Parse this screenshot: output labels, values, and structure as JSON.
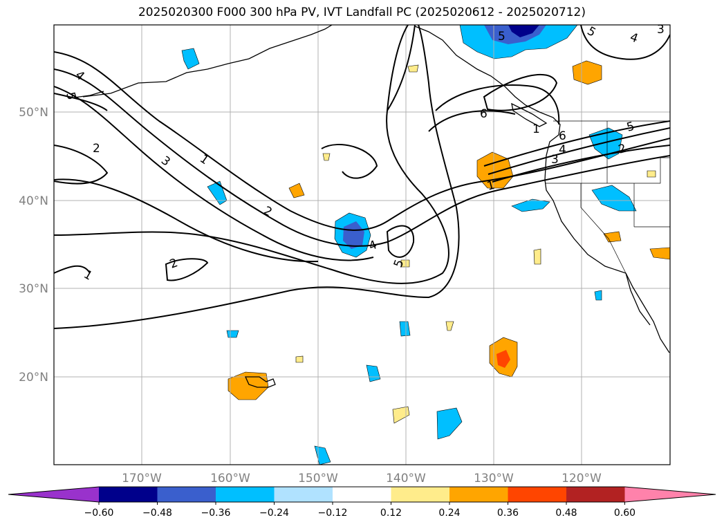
{
  "title": "2025020300 F000 300 hPa PV, IVT Landfall PC (2025020612 - 2025020712)",
  "lat_labels": [
    "50°N",
    "40°N",
    "30°N",
    "20°N"
  ],
  "lon_labels": [
    "170°W",
    "160°W",
    "150°W",
    "140°W",
    "130°W",
    "120°W"
  ],
  "colorbar": {
    "ticks": [
      "−0.60",
      "−0.48",
      "−0.36",
      "−0.24",
      "−0.12",
      "0.12",
      "0.24",
      "0.36",
      "0.48",
      "0.60"
    ],
    "colors": [
      "#9932cc",
      "#00008b",
      "#3a5fcd",
      "#00bfff",
      "#b0e2ff",
      "#ffffff",
      "#ffec8b",
      "#ffa500",
      "#ff4500",
      "#b22222",
      "#ff82ab"
    ]
  },
  "contour_labels": [
    "1",
    "2",
    "3",
    "4",
    "5",
    "6",
    "1",
    "2",
    "4",
    "5",
    "3",
    "4",
    "5",
    "6",
    "1",
    "2",
    "3",
    "4",
    "5",
    "1",
    "2",
    "5"
  ]
}
